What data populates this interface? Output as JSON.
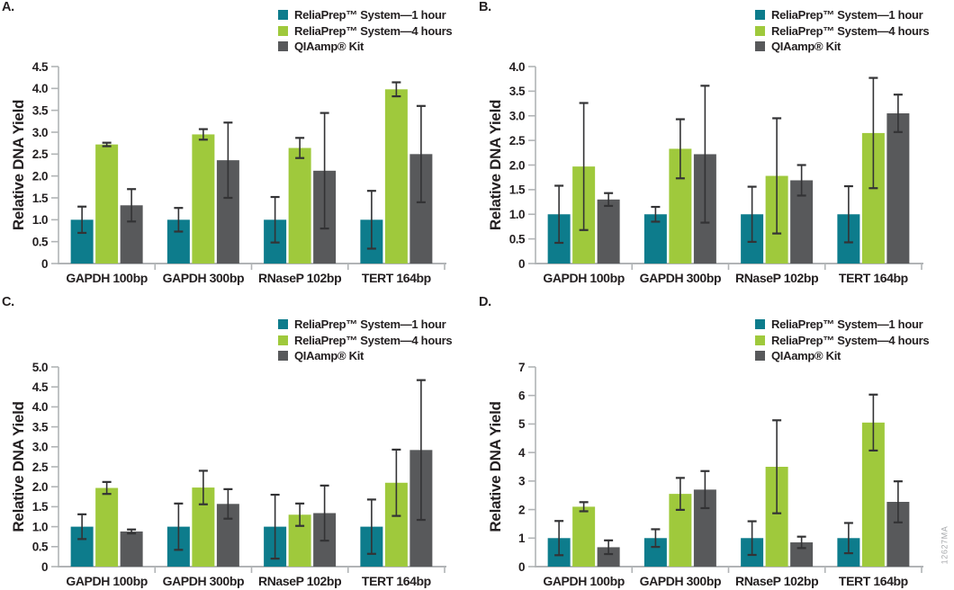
{
  "figure": {
    "ylabel": "Relative DNA Yield",
    "watermark": "12627MA",
    "categories": [
      "GAPDH 100bp",
      "GAPDH 300bp",
      "RNaseP 102bp",
      "TERT 164bp"
    ],
    "legend": [
      {
        "label": "ReliaPrep™ System—1 hour",
        "color": "#0d7c8c"
      },
      {
        "label": "ReliaPrep™ System—4 hours",
        "color": "#9fc93c"
      },
      {
        "label": "QIAamp® Kit",
        "color": "#58595b"
      }
    ],
    "colors": {
      "teal": "#0d7c8c",
      "green": "#9fc93c",
      "gray": "#58595b",
      "axis": "#b1b4b6",
      "error": "#333335",
      "text": "#231f20"
    }
  },
  "chart_data": [
    {
      "panel": "A.",
      "type": "bar",
      "xlabel": "",
      "ylabel": "Relative DNA Yield",
      "categories": [
        "GAPDH 100bp",
        "GAPDH 300bp",
        "RNaseP 102bp",
        "TERT 164bp"
      ],
      "ylim": [
        0,
        4.5
      ],
      "ytick_step": 0.5,
      "grid": false,
      "legend_position": "top-right",
      "series": [
        {
          "name": "ReliaPrep™ System—1 hour",
          "color": "#0d7c8c",
          "values": [
            1.0,
            1.0,
            1.0,
            1.0
          ],
          "errors": [
            0.3,
            0.27,
            0.52,
            0.66
          ]
        },
        {
          "name": "ReliaPrep™ System—4 hours",
          "color": "#9fc93c",
          "values": [
            2.72,
            2.95,
            2.64,
            3.98
          ],
          "errors": [
            0.04,
            0.12,
            0.23,
            0.16
          ]
        },
        {
          "name": "QIAamp® Kit",
          "color": "#58595b",
          "values": [
            1.33,
            2.36,
            2.12,
            2.5
          ],
          "errors": [
            0.37,
            0.86,
            1.32,
            1.1
          ]
        }
      ]
    },
    {
      "panel": "B.",
      "type": "bar",
      "xlabel": "",
      "ylabel": "Relative DNA Yield",
      "categories": [
        "GAPDH 100bp",
        "GAPDH 300bp",
        "RNaseP 102bp",
        "TERT 164bp"
      ],
      "ylim": [
        0,
        4.0
      ],
      "ytick_step": 0.5,
      "grid": false,
      "legend_position": "top-right",
      "series": [
        {
          "name": "ReliaPrep™ System—1 hour",
          "color": "#0d7c8c",
          "values": [
            1.0,
            1.0,
            1.0,
            1.0
          ],
          "errors": [
            0.58,
            0.15,
            0.56,
            0.57
          ]
        },
        {
          "name": "ReliaPrep™ System—4 hours",
          "color": "#9fc93c",
          "values": [
            1.97,
            2.33,
            1.78,
            2.65
          ],
          "errors": [
            1.29,
            0.6,
            1.17,
            1.12
          ]
        },
        {
          "name": "QIAamp® Kit",
          "color": "#58595b",
          "values": [
            1.3,
            2.22,
            1.69,
            3.05
          ],
          "errors": [
            0.13,
            1.39,
            0.31,
            0.38
          ]
        }
      ]
    },
    {
      "panel": "C.",
      "type": "bar",
      "xlabel": "",
      "ylabel": "Relative DNA Yield",
      "categories": [
        "GAPDH 100bp",
        "GAPDH 300bp",
        "RNaseP 102bp",
        "TERT 164bp"
      ],
      "ylim": [
        0,
        5.0
      ],
      "ytick_step": 0.5,
      "grid": false,
      "legend_position": "top-right",
      "series": [
        {
          "name": "ReliaPrep™ System—1 hour",
          "color": "#0d7c8c",
          "values": [
            1.0,
            1.0,
            1.0,
            1.0
          ],
          "errors": [
            0.31,
            0.58,
            0.8,
            0.68
          ]
        },
        {
          "name": "ReliaPrep™ System—4 hours",
          "color": "#9fc93c",
          "values": [
            1.97,
            1.98,
            1.3,
            2.1
          ],
          "errors": [
            0.15,
            0.42,
            0.28,
            0.83
          ]
        },
        {
          "name": "QIAamp® Kit",
          "color": "#58595b",
          "values": [
            0.88,
            1.57,
            1.34,
            2.92
          ],
          "errors": [
            0.05,
            0.37,
            0.69,
            1.75
          ]
        }
      ]
    },
    {
      "panel": "D.",
      "type": "bar",
      "xlabel": "",
      "ylabel": "Relative DNA Yield",
      "categories": [
        "GAPDH 100bp",
        "GAPDH 300bp",
        "RNaseP 102bp",
        "TERT 164bp"
      ],
      "ylim": [
        0,
        7
      ],
      "ytick_step": 1,
      "grid": false,
      "legend_position": "top-right",
      "series": [
        {
          "name": "ReliaPrep™ System—1 hour",
          "color": "#0d7c8c",
          "values": [
            1.0,
            1.0,
            1.0,
            1.0
          ],
          "errors": [
            0.6,
            0.31,
            0.59,
            0.53
          ]
        },
        {
          "name": "ReliaPrep™ System—4 hours",
          "color": "#9fc93c",
          "values": [
            2.1,
            2.55,
            3.5,
            5.05
          ],
          "errors": [
            0.16,
            0.56,
            1.63,
            0.98
          ]
        },
        {
          "name": "QIAamp® Kit",
          "color": "#58595b",
          "values": [
            0.68,
            2.7,
            0.85,
            2.27
          ],
          "errors": [
            0.24,
            0.65,
            0.2,
            0.72
          ]
        }
      ]
    }
  ]
}
